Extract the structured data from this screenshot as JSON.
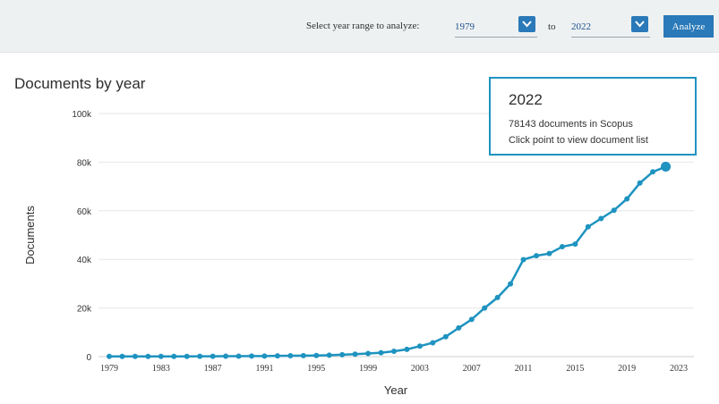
{
  "controls": {
    "range_label": "Select year range to analyze:",
    "from_year": "1979",
    "to_label": "to",
    "to_year": "2022",
    "analyze_label": "Analyze"
  },
  "tooltip": {
    "year": "2022",
    "count_text": "78143 documents in Scopus",
    "hint_text": "Click point to view document list"
  },
  "colors": {
    "line": "#1e93c0",
    "accent": "#2a79b8",
    "grid": "#e6e6e6"
  },
  "chart_data": {
    "type": "line",
    "title": "Documents by year",
    "xlabel": "Year",
    "ylabel": "Documents",
    "ylim": [
      0,
      100000
    ],
    "xlim": [
      1979,
      2023
    ],
    "yticks": [
      0,
      20000,
      40000,
      60000,
      80000,
      100000
    ],
    "ytick_labels": [
      "0",
      "20k",
      "40k",
      "60k",
      "80k",
      "100k"
    ],
    "xticks": [
      1979,
      1983,
      1987,
      1991,
      1995,
      1999,
      2003,
      2007,
      2011,
      2015,
      2019,
      2023
    ],
    "xtick_labels": [
      "1979",
      "1983",
      "1987",
      "1991",
      "1995",
      "1999",
      "2003",
      "2007",
      "2011",
      "2015",
      "2019",
      "2023"
    ],
    "grid": true,
    "highlight_x": 2022,
    "series": [
      {
        "x": [
          1979,
          1980,
          1981,
          1982,
          1983,
          1984,
          1985,
          1986,
          1987,
          1988,
          1989,
          1990,
          1991,
          1992,
          1993,
          1994,
          1995,
          1996,
          1997,
          1998,
          1999,
          2000,
          2001,
          2002,
          2003,
          2004,
          2005,
          2006,
          2007,
          2008,
          2009,
          2010,
          2011,
          2012,
          2013,
          2014,
          2015,
          2016,
          2017,
          2018,
          2019,
          2020,
          2021,
          2022
        ],
        "values": [
          100,
          100,
          100,
          100,
          100,
          100,
          100,
          150,
          150,
          200,
          200,
          250,
          250,
          300,
          350,
          400,
          450,
          600,
          800,
          1000,
          1300,
          1600,
          2200,
          3000,
          4300,
          5700,
          8200,
          11800,
          15300,
          20000,
          24300,
          29900,
          39900,
          41500,
          42400,
          45200,
          46300,
          53400,
          56800,
          60200,
          64900,
          71400,
          76000,
          78143
        ]
      }
    ]
  }
}
